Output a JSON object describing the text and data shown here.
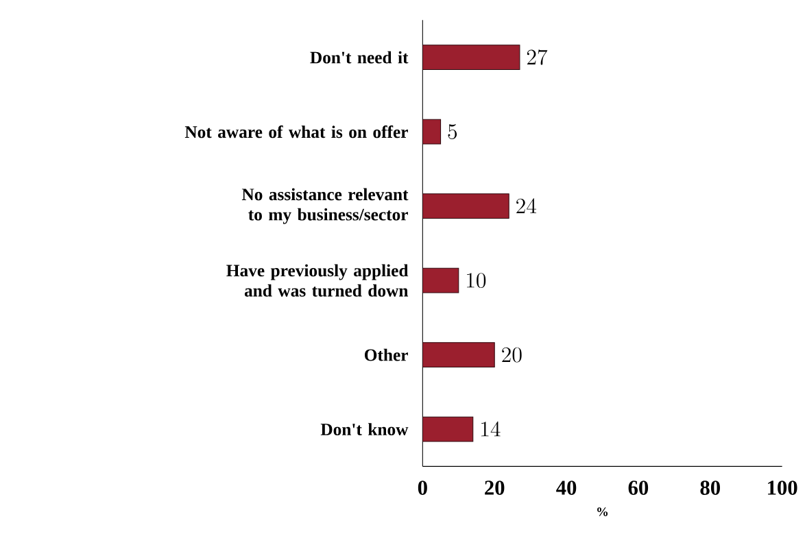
{
  "chart_data": {
    "type": "bar",
    "orientation": "horizontal",
    "xlabel": "%",
    "categories": [
      "Don't need it",
      "Not aware of what is on offer",
      "No assistance relevant to my business/sector",
      "Have previously applied and was turned down",
      "Other",
      "Don't know"
    ],
    "values": [
      27,
      5,
      24,
      10,
      20,
      14
    ],
    "color": "#9b1f2e",
    "xlim": [
      0,
      100
    ],
    "xticks": [
      0,
      20,
      40,
      60,
      80,
      100
    ],
    "data_labels": true
  }
}
